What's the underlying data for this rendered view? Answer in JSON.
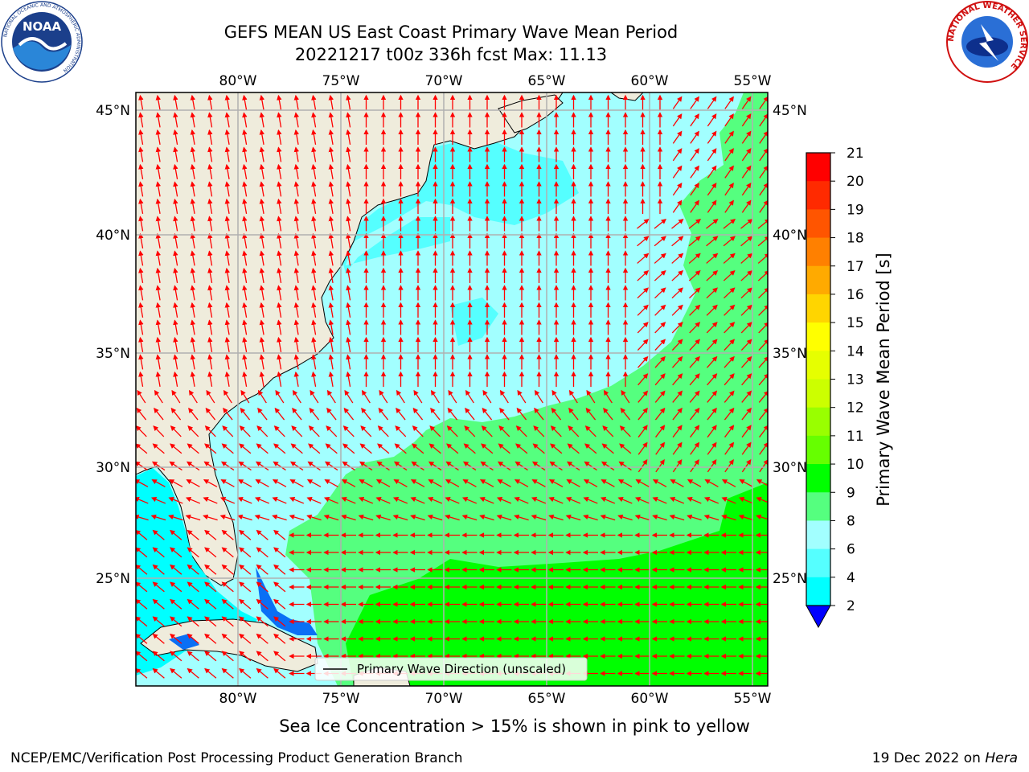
{
  "title_line1": "GEFS MEAN US East Coast Primary Wave Mean Period",
  "title_line2": "20221217 t00z 336h fcst   Max: 11.13",
  "map": {
    "lon_labels": [
      "80°W",
      "75°W",
      "70°W",
      "65°W",
      "60°W",
      "55°W"
    ],
    "lat_labels": [
      "45°N",
      "40°N",
      "35°N",
      "30°N",
      "25°N"
    ],
    "lon_values": [
      -80,
      -75,
      -70,
      -65,
      -60,
      -55
    ],
    "lat_values": [
      45,
      40,
      35,
      30,
      25
    ],
    "legend_label": "Primary Wave Direction (unscaled)",
    "arrow_color": "#ff0000"
  },
  "colorbar": {
    "label": "Primary Wave Mean Period [s]",
    "ticks": [
      "21",
      "20",
      "19",
      "18",
      "17",
      "16",
      "15",
      "14",
      "13",
      "12",
      "11",
      "10",
      "9",
      "8",
      "6",
      "4",
      "2"
    ],
    "colors": [
      "#ff0000",
      "#ff2a00",
      "#ff5500",
      "#ff8000",
      "#ffaa00",
      "#ffd500",
      "#ffff00",
      "#e6ff00",
      "#ccff00",
      "#99ff00",
      "#66ff00",
      "#00ff00",
      "#55ff7f",
      "#99ffff",
      "#55ffff",
      "#00ffff",
      "#00aaff",
      "#0055ff",
      "#0000ff"
    ],
    "under_color": "#0000ff"
  },
  "field_colors": {
    "land": "#efecdc",
    "range_2_4": "#0a6ff5",
    "range_4_6": "#00ffff",
    "range_6_8": "#55ffff",
    "range_8_9": "#a2ffff",
    "range_9_10": "#55ff7f",
    "range_10_11": "#00ff00"
  },
  "footer_note": "Sea Ice Concentration > 15% is shown in pink to yellow",
  "credit": "NCEP/EMC/Verification Post Processing Product Generation Branch",
  "date_text": "19 Dec 2022 on",
  "host": "Hera",
  "logos": {
    "noaa_text": "NOAA",
    "noaa_ring_top": "NATIONAL OCEANIC AND ATMOSPHERIC ADMINISTRATION",
    "noaa_ring_bottom": "U.S. DEPARTMENT OF COMMERCE",
    "nws_ring": "NATIONAL WEATHER SERVICE"
  }
}
